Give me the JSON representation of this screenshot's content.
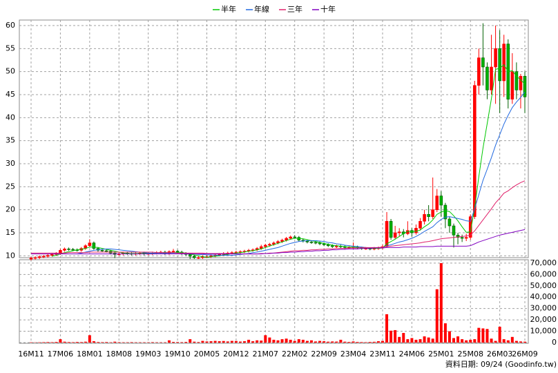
{
  "chart_data": {
    "type": "candlestick",
    "categories": [
      "16M11",
      null,
      null,
      null,
      null,
      null,
      null,
      "17M06",
      null,
      null,
      null,
      null,
      null,
      null,
      "18M01",
      null,
      null,
      null,
      null,
      null,
      null,
      "18M08",
      null,
      null,
      null,
      null,
      null,
      null,
      "19M03",
      null,
      null,
      null,
      null,
      null,
      null,
      "19M10",
      null,
      null,
      null,
      null,
      null,
      null,
      "20M05",
      null,
      null,
      null,
      null,
      null,
      null,
      "20M12",
      null,
      null,
      null,
      null,
      null,
      null,
      "21M07",
      null,
      null,
      null,
      null,
      null,
      null,
      "22M02",
      null,
      null,
      null,
      null,
      null,
      null,
      "22M09",
      null,
      null,
      null,
      null,
      null,
      null,
      "23M04",
      null,
      null,
      null,
      null,
      null,
      null,
      "23M11",
      null,
      null,
      null,
      null,
      null,
      null,
      "24M06",
      null,
      null,
      null,
      null,
      null,
      null,
      "25M01",
      null,
      null,
      null,
      null,
      null,
      null,
      "25M08",
      null,
      null,
      null,
      null,
      null,
      null,
      "26M03",
      null,
      null,
      null,
      null,
      null,
      "26M09"
    ],
    "candles": {
      "up_color": "#ff0000",
      "down_color": "#00b000",
      "open": [
        9.3,
        9.5,
        9.6,
        9.8,
        9.9,
        10.1,
        10.3,
        10.5,
        11.2,
        11.5,
        11.4,
        11.3,
        11.2,
        11.6,
        12.2,
        12.8,
        11.6,
        11.2,
        11.1,
        11.0,
        10.6,
        10.3,
        10.4,
        10.6,
        10.5,
        10.4,
        10.5,
        10.6,
        10.4,
        10.5,
        10.6,
        10.7,
        10.8,
        10.5,
        10.9,
        11.0,
        10.8,
        10.5,
        10.3,
        9.9,
        9.6,
        9.6,
        9.8,
        9.8,
        10.0,
        10.2,
        10.3,
        10.5,
        10.6,
        10.7,
        10.8,
        10.9,
        11.0,
        11.2,
        11.3,
        11.6,
        12.0,
        12.3,
        12.5,
        12.8,
        13.1,
        13.4,
        13.8,
        14.1,
        14.0,
        13.4,
        13.2,
        13.0,
        12.9,
        12.8,
        12.6,
        12.4,
        12.2,
        12.0,
        12.1,
        12.0,
        11.8,
        11.8,
        11.9,
        11.7,
        11.6,
        11.6,
        11.5,
        11.6,
        11.7,
        12.0,
        17.5,
        14.0,
        15.0,
        15.2,
        14.8,
        15.5,
        15.0,
        16.0,
        17.5,
        19.0,
        18.5,
        20.0,
        23.0,
        21.0,
        18.0,
        16.5,
        14.5,
        14.0,
        13.8,
        14.0,
        18.5,
        47.0,
        53.0,
        51.0,
        46.0,
        51.0,
        55.0,
        48.0,
        56.0,
        44.0,
        50.0,
        46.0,
        49.0
      ],
      "high": [
        9.8,
        9.9,
        10.1,
        10.2,
        10.4,
        10.6,
        10.8,
        11.5,
        11.8,
        11.8,
        11.7,
        11.6,
        11.9,
        12.5,
        13.6,
        13.1,
        11.9,
        11.5,
        11.4,
        11.3,
        10.9,
        10.7,
        10.9,
        10.9,
        10.8,
        10.8,
        10.9,
        10.9,
        10.8,
        10.9,
        11.0,
        11.1,
        11.1,
        11.2,
        11.5,
        11.3,
        11.1,
        10.8,
        10.6,
        10.2,
        9.9,
        10.1,
        10.1,
        10.3,
        10.5,
        10.6,
        10.8,
        10.9,
        11.0,
        11.1,
        11.2,
        11.3,
        11.5,
        11.6,
        11.9,
        12.4,
        12.6,
        12.8,
        13.1,
        13.4,
        13.7,
        14.1,
        14.4,
        14.5,
        14.3,
        13.7,
        13.5,
        13.3,
        13.2,
        13.1,
        12.9,
        12.7,
        12.5,
        12.4,
        12.4,
        12.3,
        12.1,
        12.9,
        12.2,
        12.0,
        11.9,
        11.8,
        11.9,
        12.0,
        12.4,
        19.5,
        18.0,
        16.5,
        16.0,
        15.8,
        17.5,
        16.0,
        16.8,
        18.2,
        20.0,
        21.0,
        27.0,
        24.5,
        24.0,
        21.5,
        18.5,
        17.0,
        15.0,
        14.6,
        14.8,
        19.0,
        48.0,
        55.0,
        60.5,
        52.0,
        58.0,
        60.0,
        59.0,
        58.0,
        57.0,
        54.0,
        52.0,
        49.5,
        50.0
      ],
      "low": [
        9.0,
        9.2,
        9.3,
        9.5,
        9.6,
        9.8,
        10.0,
        10.2,
        10.9,
        11.1,
        11.0,
        10.9,
        10.9,
        11.3,
        11.9,
        11.3,
        10.9,
        10.8,
        10.7,
        10.3,
        9.5,
        10.0,
        10.1,
        10.2,
        10.1,
        10.1,
        10.2,
        10.1,
        10.1,
        10.2,
        10.3,
        10.4,
        10.2,
        10.2,
        10.6,
        10.5,
        10.2,
        10.0,
        9.3,
        9.3,
        9.3,
        9.3,
        9.5,
        9.5,
        9.7,
        9.9,
        10.0,
        10.2,
        10.3,
        10.4,
        10.5,
        10.6,
        10.7,
        10.9,
        11.0,
        11.3,
        11.7,
        12.0,
        12.2,
        12.5,
        12.8,
        13.1,
        13.5,
        13.7,
        13.1,
        12.9,
        12.7,
        12.6,
        12.5,
        12.3,
        12.1,
        11.9,
        11.7,
        11.7,
        11.7,
        11.5,
        11.5,
        11.5,
        11.4,
        11.3,
        11.3,
        11.2,
        11.2,
        11.3,
        11.4,
        11.8,
        13.5,
        13.6,
        14.2,
        14.0,
        14.5,
        14.2,
        14.6,
        15.5,
        16.8,
        17.5,
        18.0,
        19.5,
        18.5,
        16.0,
        15.0,
        11.8,
        12.5,
        13.0,
        13.2,
        13.5,
        18.0,
        45.0,
        47.0,
        44.0,
        45.0,
        43.0,
        41.0,
        44.5,
        42.0,
        43.0,
        44.0,
        42.0,
        41.0
      ],
      "close": [
        9.5,
        9.6,
        9.8,
        9.9,
        10.1,
        10.3,
        10.5,
        11.2,
        11.5,
        11.4,
        11.3,
        11.2,
        11.6,
        12.2,
        12.8,
        11.6,
        11.2,
        11.1,
        11.0,
        10.6,
        10.3,
        10.4,
        10.6,
        10.5,
        10.4,
        10.5,
        10.6,
        10.4,
        10.5,
        10.6,
        10.7,
        10.8,
        10.5,
        10.9,
        11.0,
        10.8,
        10.5,
        10.3,
        9.9,
        9.6,
        9.6,
        9.8,
        9.8,
        10.0,
        10.2,
        10.3,
        10.5,
        10.6,
        10.7,
        10.8,
        10.9,
        11.0,
        11.2,
        11.3,
        11.6,
        12.0,
        12.3,
        12.5,
        12.8,
        13.1,
        13.4,
        13.8,
        14.1,
        14.0,
        13.4,
        13.2,
        13.0,
        12.9,
        12.8,
        12.6,
        12.4,
        12.2,
        12.0,
        12.1,
        12.0,
        11.8,
        11.8,
        11.9,
        11.7,
        11.6,
        11.6,
        11.5,
        11.6,
        11.7,
        12.0,
        17.5,
        14.0,
        15.0,
        15.2,
        14.8,
        15.5,
        15.0,
        16.0,
        17.5,
        19.0,
        18.5,
        20.0,
        23.0,
        21.0,
        18.0,
        16.5,
        14.5,
        14.0,
        13.8,
        14.0,
        18.5,
        47.0,
        53.0,
        51.0,
        46.0,
        51.0,
        55.0,
        48.0,
        56.0,
        44.0,
        50.0,
        46.0,
        49.0,
        44.5
      ]
    },
    "series": [
      {
        "name": "半年",
        "color": "#00c800",
        "values": [
          null,
          null,
          null,
          null,
          null,
          9.9,
          10.1,
          10.4,
          10.7,
          10.9,
          11.1,
          11.3,
          11.4,
          11.6,
          11.9,
          11.9,
          11.8,
          11.6,
          11.4,
          11.2,
          11.0,
          10.8,
          10.6,
          10.5,
          10.5,
          10.5,
          10.5,
          10.5,
          10.5,
          10.5,
          10.6,
          10.6,
          10.6,
          10.7,
          10.7,
          10.7,
          10.7,
          10.6,
          10.4,
          10.2,
          10.0,
          9.8,
          9.7,
          9.8,
          9.9,
          10.0,
          10.2,
          10.3,
          10.5,
          10.6,
          10.7,
          10.8,
          11.0,
          11.1,
          11.3,
          11.5,
          11.8,
          12.1,
          12.4,
          12.7,
          13.0,
          13.3,
          13.6,
          13.8,
          13.8,
          13.7,
          13.5,
          13.3,
          13.1,
          12.9,
          12.7,
          12.5,
          12.3,
          12.2,
          12.1,
          12.0,
          11.9,
          11.9,
          11.8,
          11.7,
          11.7,
          11.6,
          11.6,
          11.6,
          11.7,
          12.6,
          13.1,
          13.6,
          14.2,
          14.8,
          15.3,
          15.3,
          15.3,
          15.6,
          16.3,
          16.9,
          17.8,
          19.0,
          19.5,
          19.8,
          19.6,
          18.7,
          17.6,
          16.3,
          15.1,
          15.2,
          20.4,
          27.2,
          33.4,
          38.7,
          44.1,
          50.5,
          50.7,
          51.5,
          50.0,
          50.2,
          49.0,
          48.2,
          47.3
        ]
      },
      {
        "name": "年線",
        "color": "#2068e0",
        "values": [
          null,
          null,
          null,
          null,
          null,
          null,
          null,
          null,
          null,
          null,
          null,
          10.4,
          10.6,
          10.8,
          11.0,
          11.2,
          11.3,
          11.4,
          11.5,
          11.5,
          11.4,
          11.3,
          11.2,
          11.1,
          11.0,
          10.9,
          10.8,
          10.7,
          10.6,
          10.6,
          10.6,
          10.6,
          10.6,
          10.6,
          10.6,
          10.6,
          10.6,
          10.5,
          10.5,
          10.4,
          10.3,
          10.3,
          10.2,
          10.2,
          10.1,
          10.1,
          10.1,
          10.1,
          10.1,
          10.2,
          10.3,
          10.4,
          10.5,
          10.7,
          10.8,
          11.0,
          11.2,
          11.4,
          11.6,
          11.8,
          12.1,
          12.4,
          12.7,
          12.9,
          13.1,
          13.2,
          13.3,
          13.3,
          13.3,
          13.2,
          13.1,
          12.9,
          12.8,
          12.6,
          12.5,
          12.3,
          12.2,
          12.1,
          12.0,
          11.9,
          11.8,
          11.7,
          11.7,
          11.7,
          11.7,
          12.2,
          12.4,
          12.7,
          13.0,
          13.2,
          13.5,
          13.8,
          14.2,
          14.7,
          15.3,
          15.8,
          16.3,
          17.2,
          17.9,
          18.4,
          18.5,
          18.3,
          18.1,
          17.9,
          17.6,
          17.5,
          20.2,
          23.3,
          26.4,
          28.8,
          31.3,
          34.0,
          36.3,
          38.6,
          40.5,
          42.2,
          43.4,
          44.4,
          45.6
        ]
      },
      {
        "name": "三年",
        "color": "#e0206a",
        "values": [
          10.6,
          10.6,
          10.6,
          10.6,
          10.6,
          10.6,
          10.6,
          10.6,
          10.6,
          10.7,
          10.7,
          10.7,
          10.7,
          10.7,
          10.8,
          10.8,
          10.8,
          10.8,
          10.8,
          10.8,
          10.8,
          10.8,
          10.8,
          10.8,
          10.8,
          10.8,
          10.8,
          10.8,
          10.8,
          10.8,
          10.7,
          10.7,
          10.7,
          10.7,
          10.7,
          10.6,
          10.6,
          10.6,
          10.6,
          10.6,
          10.6,
          10.6,
          10.5,
          10.5,
          10.5,
          10.5,
          10.5,
          10.5,
          10.5,
          10.4,
          10.4,
          10.4,
          10.4,
          10.4,
          10.4,
          10.5,
          10.5,
          10.6,
          10.6,
          10.7,
          10.8,
          10.9,
          11.0,
          11.1,
          11.1,
          11.2,
          11.2,
          11.3,
          11.3,
          11.4,
          11.4,
          11.5,
          11.5,
          11.6,
          11.6,
          11.6,
          11.7,
          11.7,
          11.7,
          11.8,
          11.8,
          11.8,
          11.8,
          11.8,
          11.9,
          12.0,
          12.1,
          12.2,
          12.3,
          12.4,
          12.5,
          12.6,
          12.7,
          12.8,
          13.0,
          13.1,
          13.3,
          13.5,
          13.7,
          13.8,
          13.9,
          14.0,
          14.1,
          14.2,
          14.3,
          14.5,
          15.4,
          16.6,
          17.8,
          19.0,
          20.2,
          21.5,
          22.5,
          23.6,
          24.1,
          24.8,
          25.4,
          25.9,
          26.3
        ]
      },
      {
        "name": "十年",
        "color": "#8000c0",
        "values": [
          10.4,
          10.4,
          10.4,
          10.4,
          10.4,
          10.4,
          10.4,
          10.4,
          10.4,
          10.4,
          10.4,
          10.4,
          10.4,
          10.4,
          10.4,
          10.4,
          10.4,
          10.4,
          10.4,
          10.4,
          10.4,
          10.4,
          10.4,
          10.4,
          10.4,
          10.4,
          10.4,
          10.4,
          10.4,
          10.4,
          10.4,
          10.4,
          10.4,
          10.4,
          10.4,
          10.4,
          10.4,
          10.4,
          10.4,
          10.4,
          10.4,
          10.4,
          10.4,
          10.4,
          10.4,
          10.4,
          10.4,
          10.4,
          10.4,
          10.4,
          10.4,
          10.4,
          10.4,
          10.4,
          10.4,
          10.4,
          10.5,
          10.5,
          10.6,
          10.6,
          10.7,
          10.7,
          10.8,
          10.8,
          10.9,
          10.9,
          11.0,
          11.0,
          11.1,
          11.1,
          11.2,
          11.2,
          11.3,
          11.3,
          11.4,
          11.4,
          11.5,
          11.5,
          11.5,
          11.6,
          11.6,
          11.6,
          11.7,
          11.7,
          11.7,
          11.8,
          11.8,
          11.8,
          11.8,
          11.9,
          11.9,
          11.9,
          11.9,
          12.0,
          12.0,
          12.0,
          12.0,
          12.1,
          12.1,
          12.1,
          12.1,
          12.1,
          12.1,
          12.1,
          12.1,
          12.2,
          12.6,
          13.0,
          13.3,
          13.6,
          13.9,
          14.2,
          14.5,
          14.7,
          14.9,
          15.1,
          15.3,
          15.5,
          15.7
        ]
      }
    ],
    "ylim": [
      9.6,
      61.2
    ],
    "yticks": [
      10,
      15,
      20,
      25,
      30,
      35,
      40,
      45,
      50,
      55,
      60
    ],
    "volume": {
      "color": "#ff0000",
      "values": [
        300,
        200,
        300,
        400,
        500,
        400,
        600,
        3000,
        800,
        500,
        400,
        600,
        500,
        800,
        6500,
        1200,
        500,
        400,
        500,
        300,
        800,
        400,
        300,
        300,
        400,
        300,
        300,
        300,
        300,
        400,
        300,
        300,
        300,
        2000,
        600,
        500,
        400,
        600,
        3000,
        800,
        500,
        1500,
        1000,
        1200,
        1500,
        1200,
        1400,
        1000,
        1500,
        1400,
        900,
        1200,
        2500,
        1200,
        2000,
        1800,
        6500,
        4500,
        2500,
        2000,
        3000,
        3500,
        2500,
        1500,
        3000,
        2500,
        1500,
        2000,
        1000,
        1500,
        1200,
        800,
        1000,
        900,
        2500,
        800,
        600,
        1000,
        600,
        500,
        400,
        600,
        700,
        1200,
        1500,
        25000,
        10500,
        11000,
        5000,
        8500,
        3000,
        4000,
        2500,
        3000,
        5500,
        4500,
        3500,
        47000,
        70000,
        17000,
        10000,
        4000,
        5500,
        3000,
        2000,
        2500,
        3000,
        13000,
        12500,
        12000,
        3500,
        1500,
        14000,
        3000,
        2000,
        5000,
        1500,
        1000,
        800
      ],
      "ylim": [
        0,
        73000
      ],
      "yticks": [
        0,
        {
          "value": 10000,
          "label": "10,000"
        },
        {
          "value": 20000,
          "label": "20,000"
        },
        {
          "value": 30000,
          "label": "30,000"
        },
        {
          "value": 40000,
          "label": "40,000"
        },
        {
          "value": 50000,
          "label": "50,000"
        },
        {
          "value": 60000,
          "label": "60,000"
        },
        {
          "value": 70000,
          "label": "70,000"
        }
      ]
    },
    "grid": true,
    "legend": "top",
    "footnote": "資料日期: 09/24  (Goodinfo.tw)"
  }
}
